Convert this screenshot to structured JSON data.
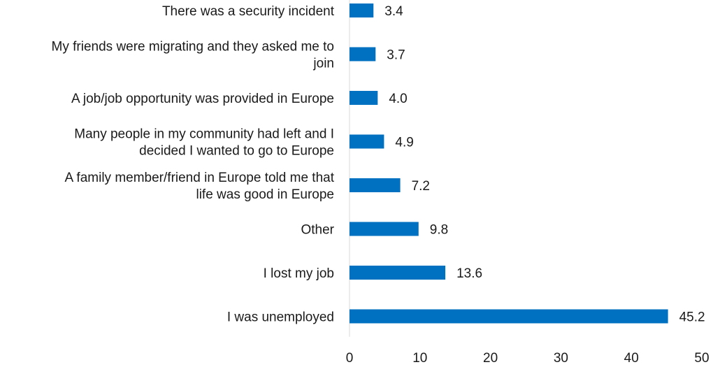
{
  "chart_data": {
    "type": "bar",
    "orientation": "horizontal",
    "categories": [
      [
        "There was a security incident"
      ],
      [
        "My friends were migrating and they asked me to",
        "join"
      ],
      [
        "A job/job opportunity was provided in Europe"
      ],
      [
        "Many people in my community had left and I",
        "decided I wanted to go to Europe"
      ],
      [
        "A family member/friend in Europe told me that",
        "life was good in Europe"
      ],
      [
        "Other"
      ],
      [
        "I lost my job"
      ],
      [
        "I was unemployed"
      ]
    ],
    "values": [
      3.4,
      3.7,
      4.0,
      4.9,
      7.2,
      9.8,
      13.6,
      45.2
    ],
    "value_labels": [
      "3.4",
      "3.7",
      "4.0",
      "4.9",
      "7.2",
      "9.8",
      "13.6",
      "45.2"
    ],
    "xlim": [
      0,
      50
    ],
    "xticks": [
      0,
      10,
      20,
      30,
      40,
      50
    ],
    "xtick_labels": [
      "0",
      "10",
      "20",
      "30",
      "40",
      "50"
    ],
    "title": "",
    "xlabel": "",
    "ylabel": "",
    "grid": false,
    "legend": "none",
    "bar_color": "#0070C0"
  }
}
